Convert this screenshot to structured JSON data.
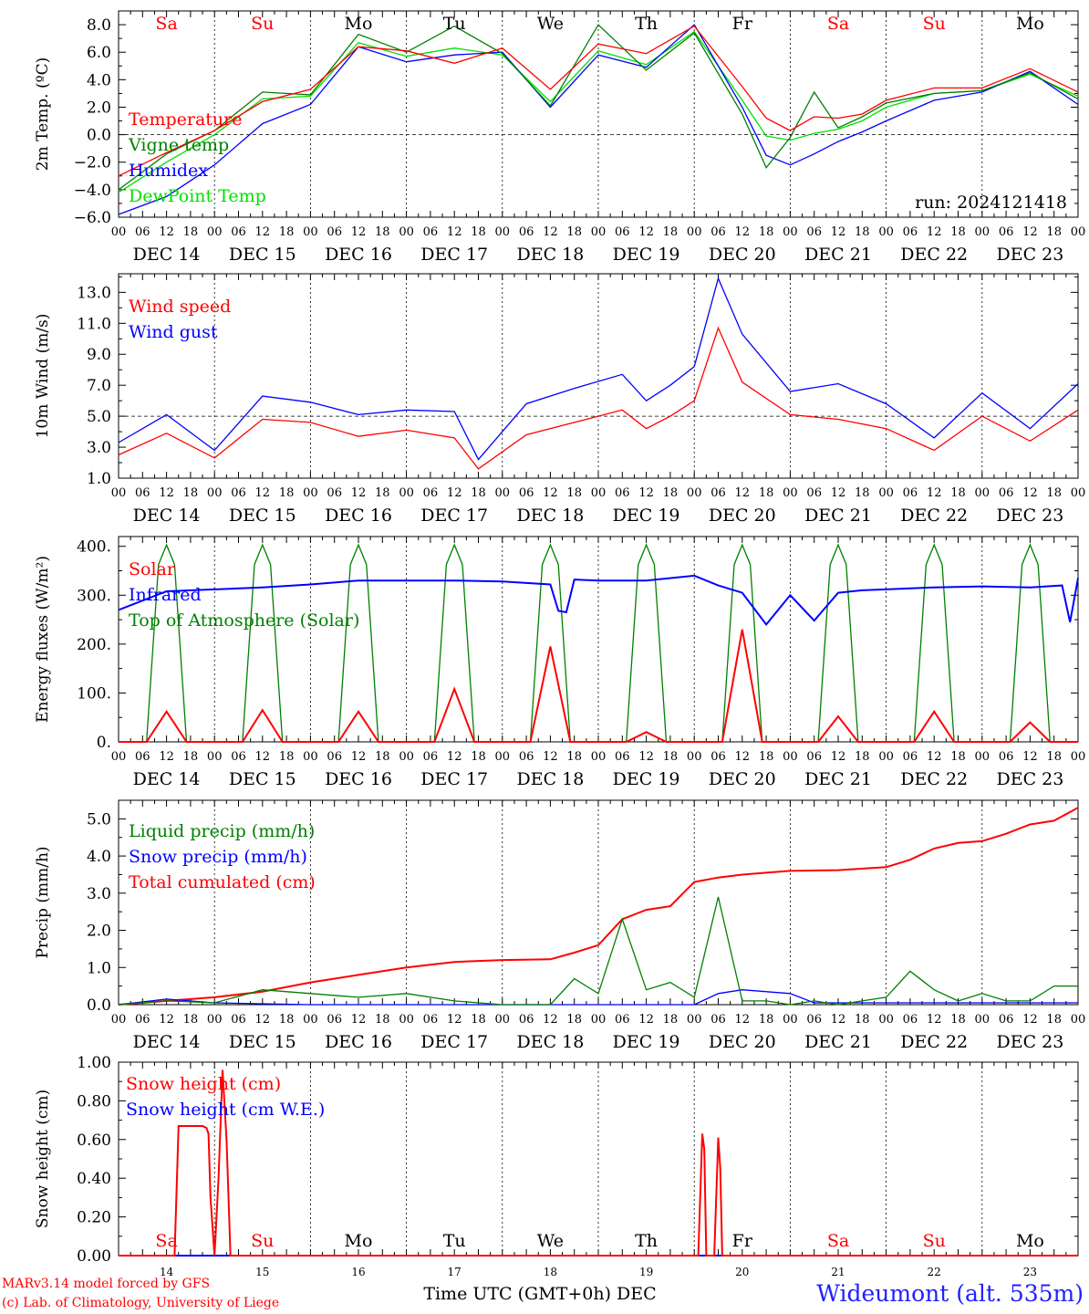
{
  "footer": {
    "credit_line1": "MARv3.14 model forced by GFS",
    "credit_line2": "(c) Lab. of Climatology, University of Liege",
    "station": "Wideumont (alt. 535m)"
  },
  "chart_data": [
    {
      "type": "line",
      "ylabel": "2m Temp. (ºC)",
      "ylim": [
        -6,
        9
      ],
      "yticks": [
        8,
        6,
        4,
        2,
        0,
        -2,
        -4,
        -6
      ],
      "ytick_labels": [
        "8.0",
        "6.0",
        "4.0",
        "2.0",
        "0.0",
        "−2.0",
        "−4.0",
        "−6.0"
      ],
      "ref_line": 0,
      "annotation": "run: 2024121418",
      "day_names": [
        "Sa",
        "Su",
        "Mo",
        "Tu",
        "We",
        "Th",
        "Fr",
        "Sa",
        "Su",
        "Mo"
      ],
      "day_colors": [
        "#ff0000",
        "#ff0000",
        "#000000",
        "#000000",
        "#000000",
        "#000000",
        "#000000",
        "#ff0000",
        "#ff0000",
        "#000000"
      ],
      "series": [
        {
          "name": "Temperature",
          "color": "#ff0000",
          "x": [
            0,
            12,
            24,
            36,
            48,
            60,
            72,
            84,
            96,
            108,
            120,
            132,
            144,
            156,
            162,
            168,
            174,
            180,
            186,
            192,
            204,
            216,
            228,
            240
          ],
          "values": [
            -3,
            -1.3,
            0.3,
            2.4,
            3.3,
            6.4,
            6.1,
            5.2,
            6.3,
            3.3,
            6.6,
            5.9,
            7.9,
            3.5,
            1.2,
            0.3,
            1.3,
            1.2,
            1.5,
            2.5,
            3.4,
            3.4,
            4.8,
            3.1
          ]
        },
        {
          "name": "Vigne temp",
          "color": "#008000",
          "x": [
            0,
            12,
            24,
            36,
            48,
            60,
            72,
            84,
            96,
            108,
            120,
            132,
            144,
            156,
            162,
            168,
            174,
            180,
            186,
            192,
            204,
            216,
            228,
            240
          ],
          "values": [
            -4,
            -1.4,
            0.3,
            3.1,
            2.9,
            7.3,
            6,
            7.9,
            5.9,
            2.1,
            8,
            4.7,
            7.4,
            1.5,
            -2.4,
            -0.2,
            3.1,
            0.5,
            1.3,
            2.3,
            3,
            3.2,
            4.5,
            2.6
          ]
        },
        {
          "name": "Humidex",
          "color": "#0000ff",
          "x": [
            0,
            12,
            24,
            36,
            48,
            60,
            72,
            84,
            96,
            108,
            120,
            132,
            144,
            156,
            162,
            168,
            174,
            180,
            186,
            192,
            204,
            216,
            228,
            240
          ],
          "values": [
            -5.8,
            -4.5,
            -2.2,
            0.8,
            2.2,
            6.4,
            5.3,
            5.8,
            6,
            2,
            5.8,
            4.9,
            8,
            2,
            -1.5,
            -2.2,
            -1.4,
            -0.5,
            0.2,
            1,
            2.5,
            3.1,
            4.6,
            2.2
          ]
        },
        {
          "name": "DewPoint Temp",
          "color": "#00e000",
          "x": [
            0,
            12,
            24,
            36,
            48,
            60,
            72,
            84,
            96,
            108,
            120,
            132,
            144,
            156,
            162,
            168,
            174,
            180,
            186,
            192,
            204,
            216,
            228,
            240
          ],
          "values": [
            -4.2,
            -2,
            0,
            2.6,
            2.8,
            6.7,
            5.7,
            6.3,
            5.8,
            2.4,
            6.1,
            5.1,
            7.5,
            2.5,
            -0.1,
            -0.4,
            0.1,
            0.4,
            1,
            2,
            3,
            3.2,
            4.4,
            2.8
          ]
        }
      ]
    },
    {
      "type": "line",
      "ylabel": "10m Wind (m/s)",
      "ylim": [
        1,
        14.2
      ],
      "yticks": [
        1,
        3,
        5,
        7,
        9,
        11,
        13
      ],
      "ytick_labels": [
        "1.0",
        "3.0",
        "5.0",
        "7.0",
        "9.0",
        "11.0",
        "13.0"
      ],
      "ref_line": 5,
      "series": [
        {
          "name": "Wind speed",
          "color": "#ff0000",
          "x": [
            0,
            12,
            24,
            36,
            48,
            60,
            72,
            84,
            90,
            102,
            114,
            126,
            132,
            138,
            144,
            150,
            156,
            168,
            180,
            192,
            204,
            216,
            228,
            240
          ],
          "values": [
            2.5,
            3.9,
            2.3,
            4.8,
            4.6,
            3.7,
            4.1,
            3.6,
            1.6,
            3.8,
            4.6,
            5.4,
            4.2,
            5,
            6,
            10.7,
            7.2,
            5.1,
            4.8,
            4.2,
            2.8,
            5,
            3.4,
            5.4
          ]
        },
        {
          "name": "Wind gust",
          "color": "#0000ff",
          "x": [
            0,
            12,
            24,
            36,
            48,
            60,
            72,
            84,
            90,
            102,
            114,
            126,
            132,
            138,
            144,
            150,
            156,
            168,
            180,
            192,
            204,
            216,
            228,
            240
          ],
          "values": [
            3.3,
            5.1,
            2.8,
            6.3,
            5.9,
            5.1,
            5.4,
            5.3,
            2.2,
            5.8,
            6.8,
            7.7,
            6,
            7,
            8.2,
            13.9,
            10.3,
            6.6,
            7.1,
            5.8,
            3.6,
            6.5,
            4.2,
            7.1
          ]
        }
      ]
    },
    {
      "type": "line",
      "ylabel": "Energy fluxes (W/m²)",
      "ylim": [
        0,
        420
      ],
      "yticks": [
        0,
        100,
        200,
        300,
        400
      ],
      "ytick_labels": [
        "0.",
        "100.",
        "200.",
        "300.",
        "400."
      ],
      "day_solar_peaks": [
        62,
        65,
        62,
        108,
        195,
        20,
        230,
        52,
        62,
        40
      ],
      "toa_peak": 403,
      "series": [
        {
          "name": "Solar",
          "color": "#ff0000"
        },
        {
          "name": "Infrared",
          "color": "#0000ff",
          "x": [
            0,
            12,
            24,
            36,
            48,
            60,
            72,
            84,
            96,
            108,
            110,
            112,
            114,
            120,
            132,
            144,
            150,
            156,
            162,
            168,
            174,
            180,
            186,
            192,
            204,
            216,
            228,
            236,
            238,
            240
          ],
          "values": [
            270,
            308,
            312,
            316,
            322,
            330,
            330,
            330,
            328,
            322,
            268,
            265,
            332,
            330,
            330,
            340,
            320,
            305,
            240,
            300,
            248,
            305,
            310,
            312,
            316,
            318,
            316,
            320,
            245,
            335
          ]
        },
        {
          "name": "Top of Atmosphere (Solar)",
          "color": "#008000"
        }
      ]
    },
    {
      "type": "line",
      "ylabel": "Precip (mm/h)",
      "ylim": [
        0,
        5.5
      ],
      "yticks": [
        0,
        1,
        2,
        3,
        4,
        5
      ],
      "ytick_labels": [
        "0.0",
        "1.0",
        "2.0",
        "3.0",
        "4.0",
        "5.0"
      ],
      "series": [
        {
          "name": "Liquid precip (mm/h)",
          "color": "#008000",
          "x": [
            0,
            12,
            24,
            36,
            48,
            60,
            72,
            84,
            96,
            108,
            114,
            120,
            126,
            132,
            138,
            144,
            150,
            156,
            162,
            168,
            174,
            180,
            186,
            192,
            198,
            204,
            210,
            216,
            222,
            228,
            234,
            240
          ],
          "values": [
            0,
            0.1,
            0.05,
            0.4,
            0.3,
            0.2,
            0.3,
            0.1,
            0,
            0,
            0.7,
            0.3,
            2.3,
            0.4,
            0.6,
            0.2,
            2.9,
            0.1,
            0.1,
            0,
            0.1,
            0,
            0.1,
            0.2,
            0.9,
            0.4,
            0.1,
            0.3,
            0.1,
            0.1,
            0.5,
            0.5
          ]
        },
        {
          "name": "Snow precip (mm/h)",
          "color": "#0000ff",
          "x": [
            0,
            12,
            24,
            48,
            144,
            150,
            156,
            168,
            174,
            180,
            192,
            204,
            216,
            228,
            240
          ],
          "values": [
            0,
            0.15,
            0.05,
            0,
            0,
            0.3,
            0.4,
            0.3,
            0.05,
            0.05,
            0.05,
            0.05,
            0.05,
            0.05,
            0.05
          ]
        },
        {
          "name": "Total cumulated (cm)",
          "color": "#ff0000",
          "x": [
            0,
            12,
            24,
            36,
            48,
            60,
            72,
            84,
            96,
            108,
            114,
            120,
            126,
            132,
            138,
            144,
            150,
            156,
            162,
            168,
            180,
            192,
            198,
            204,
            210,
            216,
            222,
            228,
            234,
            240
          ],
          "values": [
            0,
            0.1,
            0.2,
            0.35,
            0.6,
            0.8,
            1,
            1.15,
            1.2,
            1.22,
            1.4,
            1.6,
            2.3,
            2.55,
            2.65,
            3.3,
            3.42,
            3.5,
            3.55,
            3.6,
            3.62,
            3.7,
            3.9,
            4.2,
            4.35,
            4.4,
            4.6,
            4.85,
            4.95,
            5.3
          ]
        }
      ]
    },
    {
      "type": "line",
      "ylabel": "Snow height (cm)",
      "ylim": [
        0,
        1
      ],
      "yticks": [
        0,
        0.2,
        0.4,
        0.6,
        0.8,
        1
      ],
      "ytick_labels": [
        "0.00",
        "0.20",
        "0.40",
        "0.60",
        "0.80",
        "1.00"
      ],
      "xlabel": "Time UTC (GMT+0h) DEC",
      "day_numbers": [
        "14",
        "15",
        "16",
        "17",
        "18",
        "19",
        "20",
        "21",
        "22",
        "23"
      ],
      "series": [
        {
          "name": "Snow height (cm)",
          "color": "#ff0000",
          "x": [
            0,
            14,
            15,
            21,
            22,
            22.5,
            23,
            24,
            25,
            26,
            27,
            28,
            29,
            30,
            31,
            144,
            145,
            146,
            146.5,
            147,
            148,
            149,
            150,
            150.5,
            151,
            152,
            240
          ],
          "values": [
            0,
            0,
            0.67,
            0.67,
            0.66,
            0.63,
            0.3,
            0,
            0.4,
            0.96,
            0.6,
            0,
            0,
            0,
            0,
            0,
            0,
            0.63,
            0.55,
            0,
            0,
            0,
            0.61,
            0.45,
            0,
            0,
            0
          ]
        },
        {
          "name": "Snow height (cm W.E.)",
          "color": "#0000ff",
          "x": [
            0,
            240
          ],
          "values": [
            0,
            0
          ]
        }
      ]
    }
  ],
  "panel_date_labels": [
    "DEC 14",
    "DEC 15",
    "DEC 16",
    "DEC 17",
    "DEC 18",
    "DEC 19",
    "DEC 20",
    "DEC 21",
    "DEC 22",
    "DEC 23"
  ],
  "hour_labels": [
    "00",
    "06",
    "12",
    "18"
  ],
  "final_hour_label": "00"
}
